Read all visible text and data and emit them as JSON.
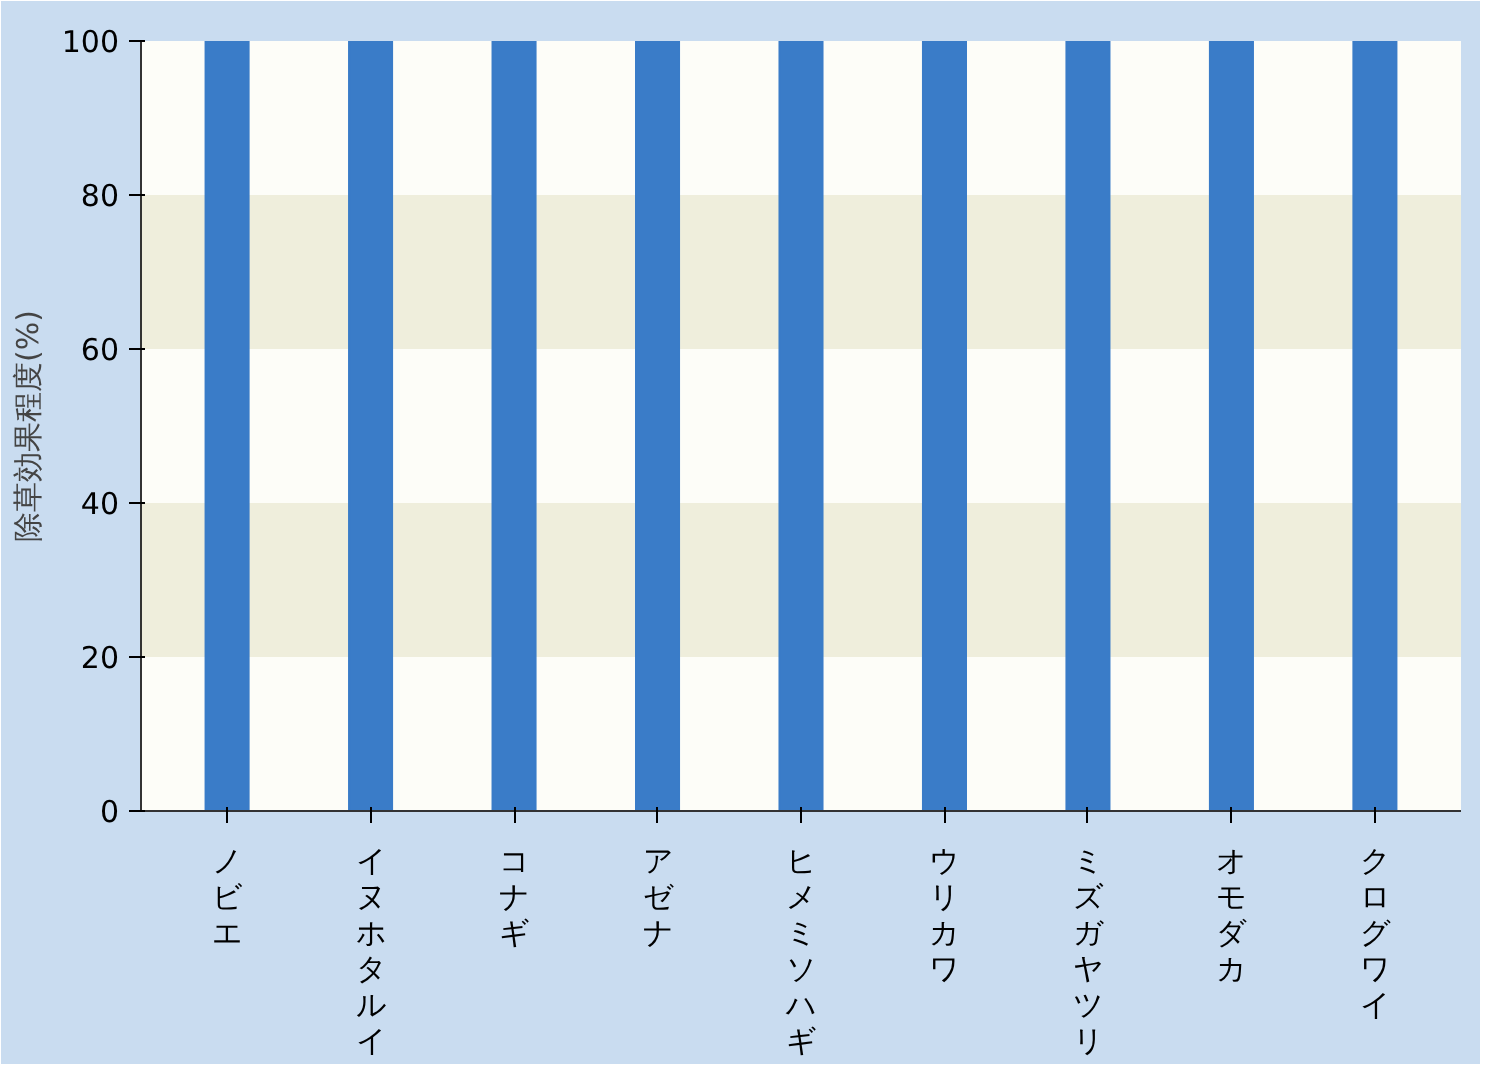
{
  "chart_data": {
    "type": "bar",
    "ylabel": "除草効果程度(%)",
    "categories": [
      "ノビエ",
      "イヌホタルイ",
      "コナギ",
      "アゼナ",
      "ヒメミソハギ",
      "ウリカワ",
      "ミズガヤツリ",
      "オモダカ",
      "クログワイ"
    ],
    "values": [
      100,
      100,
      100,
      100,
      100,
      100,
      100,
      100,
      100
    ],
    "color": "#3a7cc8",
    "ylim": [
      0,
      100
    ],
    "yticks": [
      0,
      20,
      40,
      60,
      80,
      100
    ],
    "grid": false,
    "bands": [
      {
        "axis": "y",
        "from": 20,
        "to": 40,
        "color": "#efeedc"
      },
      {
        "axis": "y",
        "from": 60,
        "to": 80,
        "color": "#efeedc"
      }
    ]
  }
}
